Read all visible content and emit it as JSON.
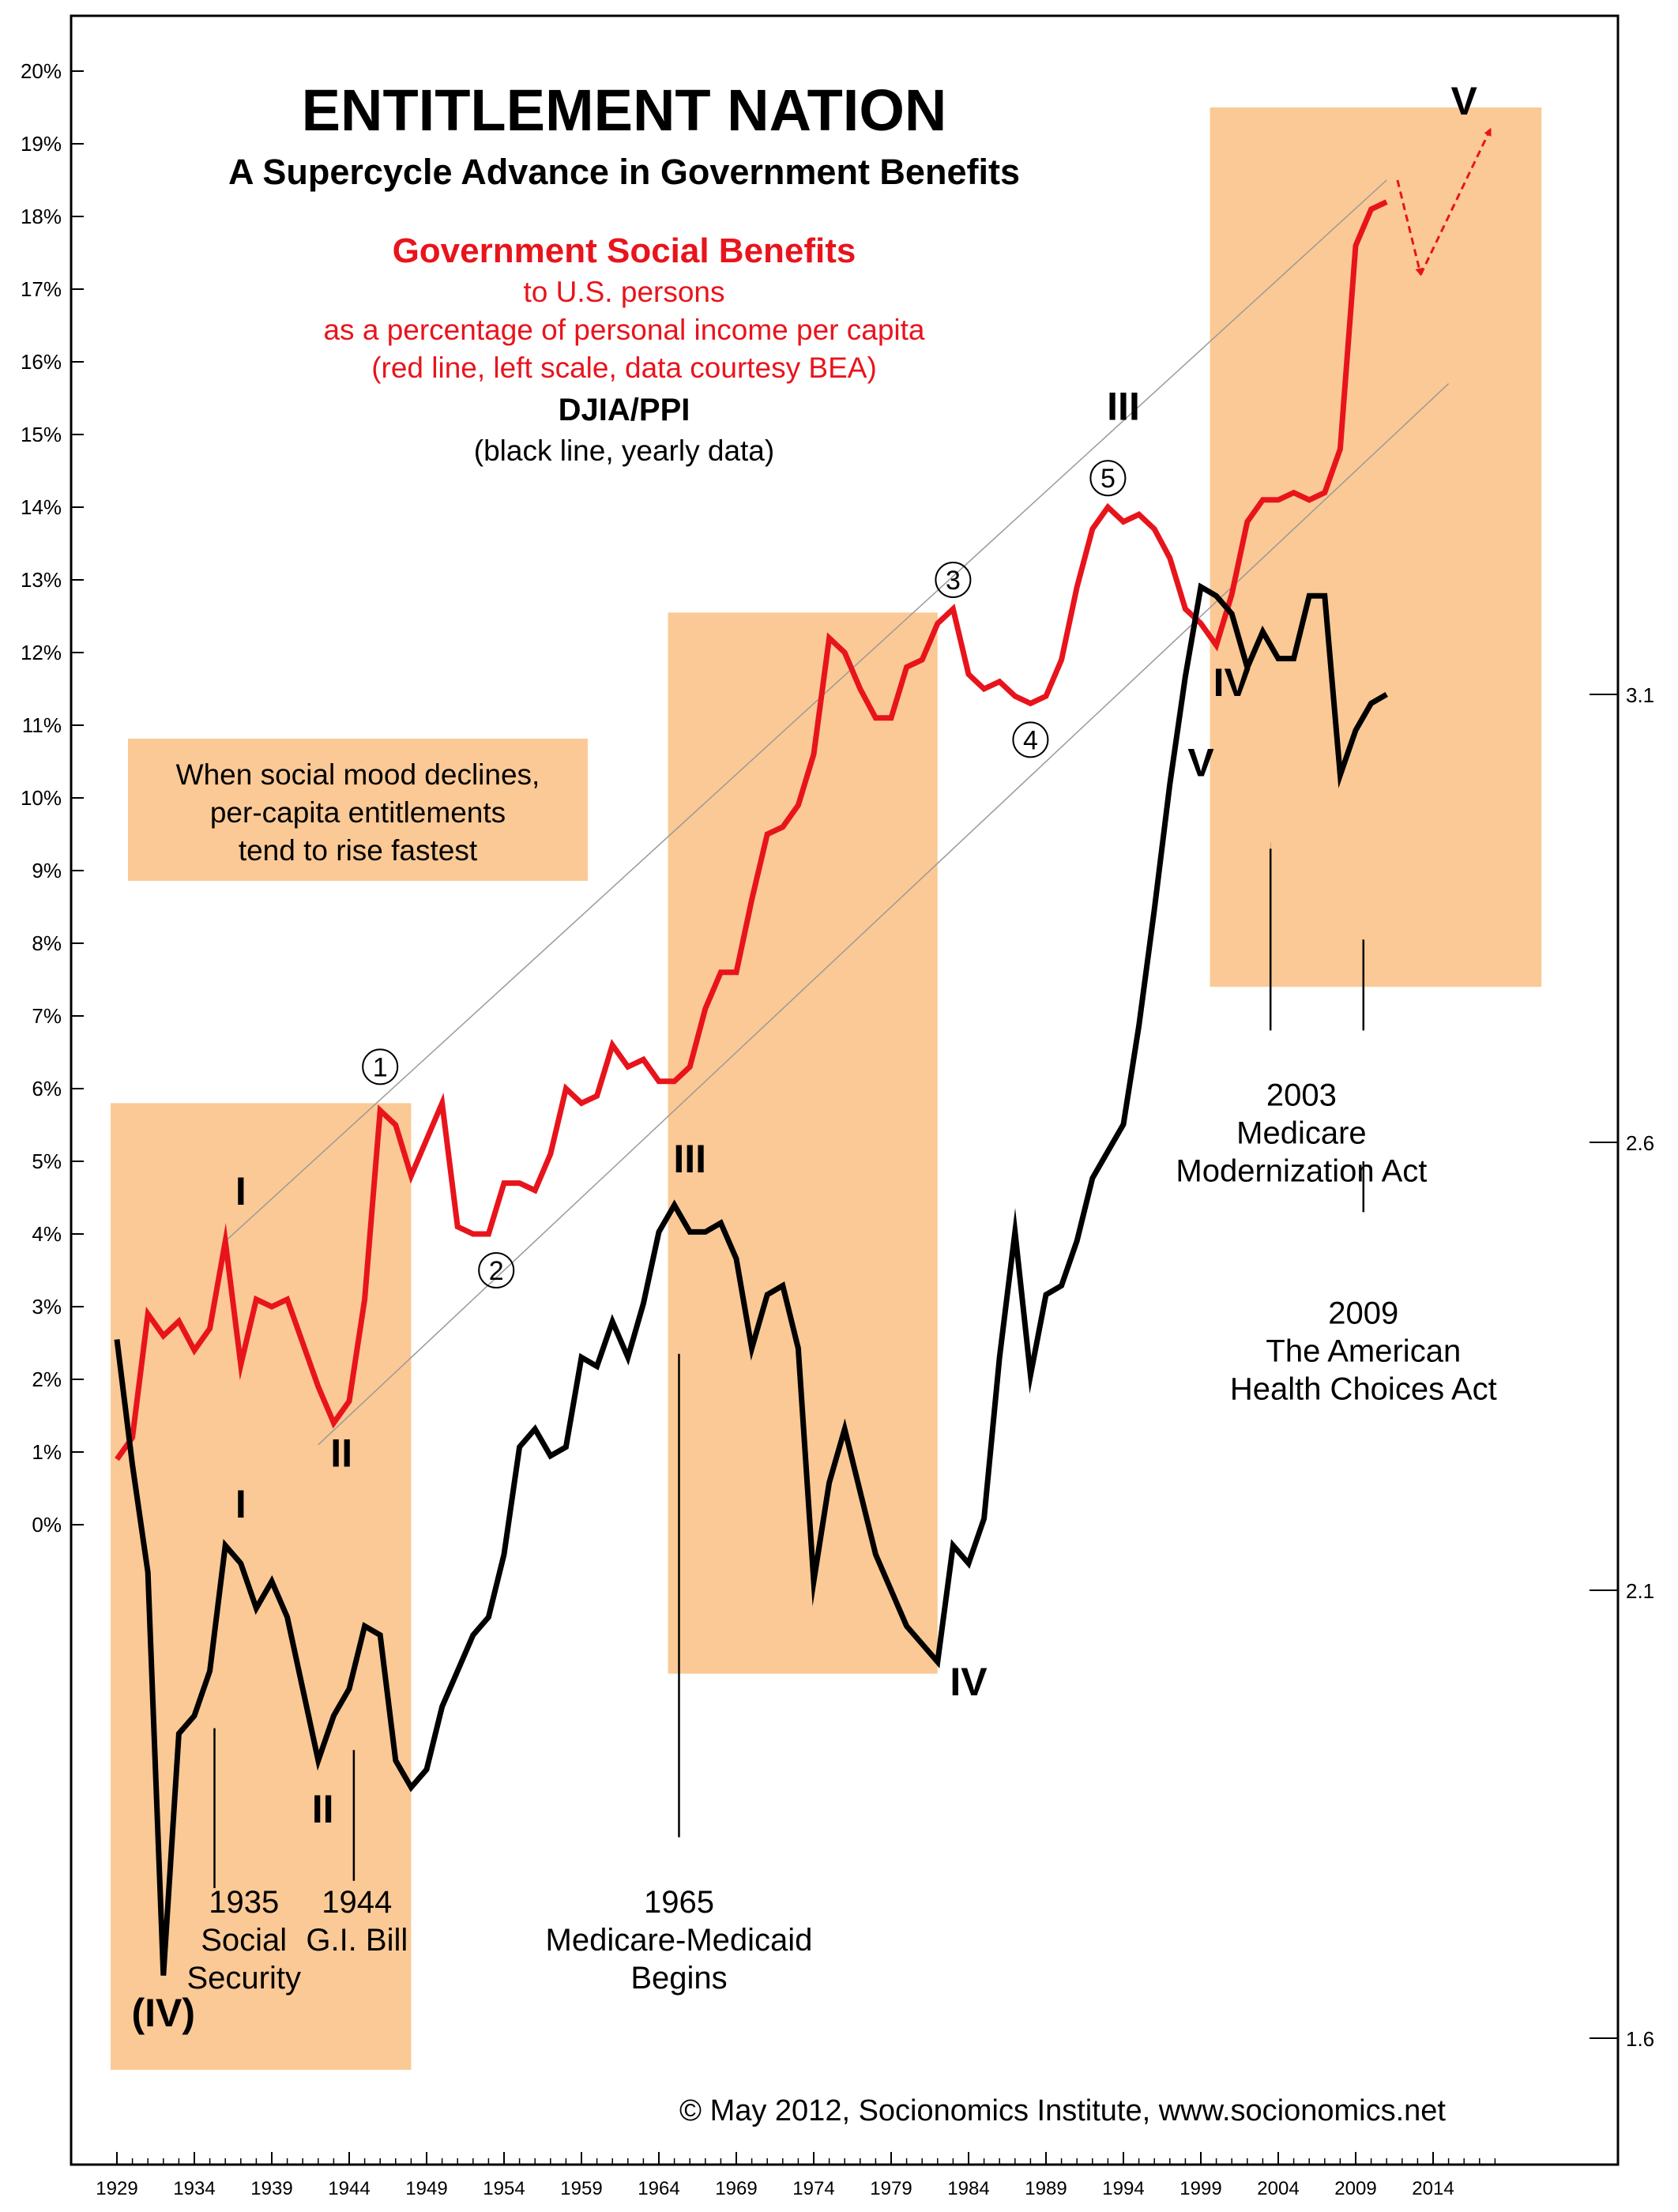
{
  "chart_data": {
    "type": "line",
    "title": "ENTITLEMENT NATION",
    "subtitle": "A Supercycle Advance in Government Benefits",
    "legend": {
      "red_title": "Government Social Benefits",
      "red_lines": [
        "to U.S. persons",
        "as a percentage of personal income per capita",
        "(red line, left scale, data courtesy BEA)"
      ],
      "black_title": "DJIA/PPI",
      "black_lines": [
        "(black line, yearly data)"
      ]
    },
    "note_box": [
      "When social mood declines,",
      "per-capita entitlements",
      "tend to rise fastest"
    ],
    "copyright": "© May 2012, Socionomics Institute, www.socionomics.net",
    "x_ticks": [
      1929,
      1934,
      1939,
      1944,
      1949,
      1954,
      1959,
      1964,
      1969,
      1974,
      1979,
      1984,
      1989,
      1994,
      1999,
      2004,
      2009,
      2014
    ],
    "xlim": [
      1928.5,
      2018.5
    ],
    "left_axis": {
      "ylim": [
        0,
        20
      ],
      "ticks": [
        0,
        1,
        2,
        3,
        4,
        5,
        6,
        7,
        8,
        9,
        10,
        11,
        12,
        13,
        14,
        15,
        16,
        17,
        18,
        19,
        20
      ],
      "tick_labels": [
        "0%",
        "1%",
        "2%",
        "3%",
        "4%",
        "5%",
        "6%",
        "7%",
        "8%",
        "9%",
        "10%",
        "11%",
        "12%",
        "13%",
        "14%",
        "15%",
        "16%",
        "17%",
        "18%",
        "19%",
        "20%"
      ]
    },
    "right_axis": {
      "ticks": [
        1.6,
        2.1,
        2.6,
        3.1
      ],
      "tick_labels": [
        "1.6",
        "2.1",
        "2.6",
        "3.1"
      ]
    },
    "shaded_periods": [
      {
        "x": [
          1929,
          1948
        ],
        "y_left": [
          -7.5,
          5.8
        ]
      },
      {
        "x": [
          1965,
          1982
        ],
        "y_left": [
          -2.05,
          12.55
        ]
      },
      {
        "x": [
          2000,
          2021
        ],
        "y_left": [
          7.4,
          19.5
        ]
      }
    ],
    "series": [
      {
        "color": "#e8141c",
        "axis": "left",
        "x": [
          1929,
          1930,
          1931,
          1932,
          1933,
          1934,
          1935,
          1936,
          1937,
          1938,
          1939,
          1940,
          1941,
          1942,
          1943,
          1944,
          1945,
          1946,
          1947,
          1948,
          1949,
          1950,
          1951,
          1952,
          1953,
          1954,
          1955,
          1956,
          1957,
          1958,
          1959,
          1960,
          1961,
          1962,
          1963,
          1964,
          1965,
          1966,
          1967,
          1968,
          1969,
          1970,
          1971,
          1972,
          1973,
          1974,
          1975,
          1976,
          1977,
          1978,
          1979,
          1980,
          1981,
          1982,
          1983,
          1984,
          1985,
          1986,
          1987,
          1988,
          1989,
          1990,
          1991,
          1992,
          1993,
          1994,
          1995,
          1996,
          1997,
          1998,
          1999,
          2000,
          2001,
          2002,
          2003,
          2004,
          2005,
          2006,
          2007,
          2008,
          2009,
          2010,
          2011
        ],
        "values": [
          0.9,
          1.2,
          2.9,
          2.6,
          2.8,
          2.4,
          2.7,
          3.9,
          2.2,
          3.1,
          3.0,
          3.1,
          2.5,
          1.9,
          1.4,
          1.7,
          3.1,
          5.7,
          5.5,
          4.8,
          5.3,
          5.8,
          4.1,
          4.0,
          4.0,
          4.7,
          4.7,
          4.6,
          5.1,
          6.0,
          5.8,
          5.9,
          6.6,
          6.3,
          6.4,
          6.1,
          6.1,
          6.3,
          7.1,
          7.6,
          7.6,
          8.6,
          9.5,
          9.6,
          9.9,
          10.6,
          12.2,
          12.0,
          11.5,
          11.1,
          11.1,
          11.8,
          11.9,
          12.4,
          12.6,
          11.7,
          11.5,
          11.6,
          11.4,
          11.3,
          11.4,
          11.9,
          12.9,
          13.7,
          14.0,
          13.8,
          13.9,
          13.7,
          13.3,
          12.6,
          12.4,
          12.1,
          12.8,
          13.8,
          14.1,
          14.1,
          14.2,
          14.1,
          14.2,
          14.8,
          17.6,
          18.1,
          18.2
        ]
      },
      {
        "color": "#000000",
        "axis": "right",
        "x": [
          1929,
          1930,
          1931,
          1932,
          1933,
          1934,
          1935,
          1936,
          1937,
          1938,
          1939,
          1940,
          1941,
          1942,
          1943,
          1944,
          1945,
          1946,
          1947,
          1948,
          1949,
          1950,
          1951,
          1952,
          1953,
          1954,
          1955,
          1956,
          1957,
          1958,
          1959,
          1960,
          1961,
          1962,
          1963,
          1964,
          1965,
          1966,
          1967,
          1968,
          1969,
          1970,
          1971,
          1972,
          1973,
          1974,
          1975,
          1976,
          1977,
          1978,
          1979,
          1980,
          1981,
          1982,
          1983,
          1984,
          1985,
          1986,
          1987,
          1988,
          1989,
          1990,
          1991,
          1992,
          1993,
          1994,
          1995,
          1996,
          1997,
          1998,
          1999,
          2000,
          2001,
          2002,
          2003,
          2004,
          2005,
          2006,
          2007,
          2008,
          2009,
          2010,
          2011
        ],
        "values": [
          2.38,
          2.24,
          2.12,
          1.67,
          1.94,
          1.96,
          2.01,
          2.15,
          2.13,
          2.08,
          2.11,
          2.07,
          1.99,
          1.91,
          1.96,
          1.99,
          2.06,
          2.05,
          1.91,
          1.88,
          1.9,
          1.97,
          2.01,
          2.05,
          2.07,
          2.14,
          2.26,
          2.28,
          2.25,
          2.26,
          2.36,
          2.35,
          2.4,
          2.36,
          2.42,
          2.5,
          2.53,
          2.5,
          2.5,
          2.51,
          2.47,
          2.37,
          2.43,
          2.44,
          2.37,
          2.11,
          2.22,
          2.28,
          2.21,
          2.14,
          2.1,
          2.06,
          2.04,
          2.02,
          2.15,
          2.13,
          2.18,
          2.36,
          2.5,
          2.34,
          2.43,
          2.44,
          2.49,
          2.56,
          2.59,
          2.62,
          2.73,
          2.86,
          3.0,
          3.12,
          3.22,
          3.21,
          3.19,
          3.13,
          3.17,
          3.14,
          3.14,
          3.21,
          3.21,
          3.01,
          3.06,
          3.09,
          3.1
        ]
      }
    ],
    "channel_lines": [
      {
        "x": [
          1936,
          2011
        ],
        "y_left": [
          3.9,
          18.5
        ]
      },
      {
        "x": [
          1942,
          2015
        ],
        "y_left": [
          1.1,
          15.7
        ]
      }
    ],
    "wave_labels_red": [
      {
        "label": "I",
        "x": 1937,
        "y_left": 4.4
      },
      {
        "label": "II",
        "x": 1943.5,
        "y_left": 0.8
      },
      {
        "label": "III",
        "x": 1994,
        "y_left": 15.2
      },
      {
        "label": "IV",
        "x": 2001,
        "y_left": 11.4
      },
      {
        "label": "V",
        "x": 2016,
        "y_left": 19.4
      }
    ],
    "wave_labels_black": [
      {
        "label": "I",
        "x": 1937,
        "y_left": 0.1
      },
      {
        "label": "II",
        "x": 1942.3,
        "y_left": -4.1
      },
      {
        "label": "(IV)",
        "x": 1932,
        "y_left": -6.9
      },
      {
        "label": "III",
        "x": 1966,
        "y_left": 4.85
      },
      {
        "label": "IV",
        "x": 1984,
        "y_left": -2.35
      },
      {
        "label": "V",
        "x": 1999,
        "y_left": 10.3
      }
    ],
    "circled_labels": [
      {
        "label": "1",
        "x": 1946,
        "y_left": 6.3
      },
      {
        "label": "2",
        "x": 1953.5,
        "y_left": 3.5
      },
      {
        "label": "3",
        "x": 1983,
        "y_left": 13.0
      },
      {
        "label": "4",
        "x": 1988,
        "y_left": 10.8
      },
      {
        "label": "5",
        "x": 1993,
        "y_left": 14.4
      }
    ],
    "event_annotations": [
      {
        "lines": [
          "1935",
          "Social",
          "Security"
        ],
        "arrow_x": 1935.3
      },
      {
        "lines": [
          "1944",
          "G.I. Bill"
        ],
        "arrow_x": 1944.3
      },
      {
        "lines": [
          "1965",
          "Medicare-Medicaid",
          "Begins"
        ],
        "arrow_x": 1965.3
      },
      {
        "lines": [
          "2003",
          "Medicare",
          "Modernization Act"
        ],
        "arrow_x": 2003.5
      },
      {
        "lines": [
          "2009",
          "The American",
          "Health Choices Act"
        ],
        "arrow_x": 2009.5
      }
    ]
  }
}
